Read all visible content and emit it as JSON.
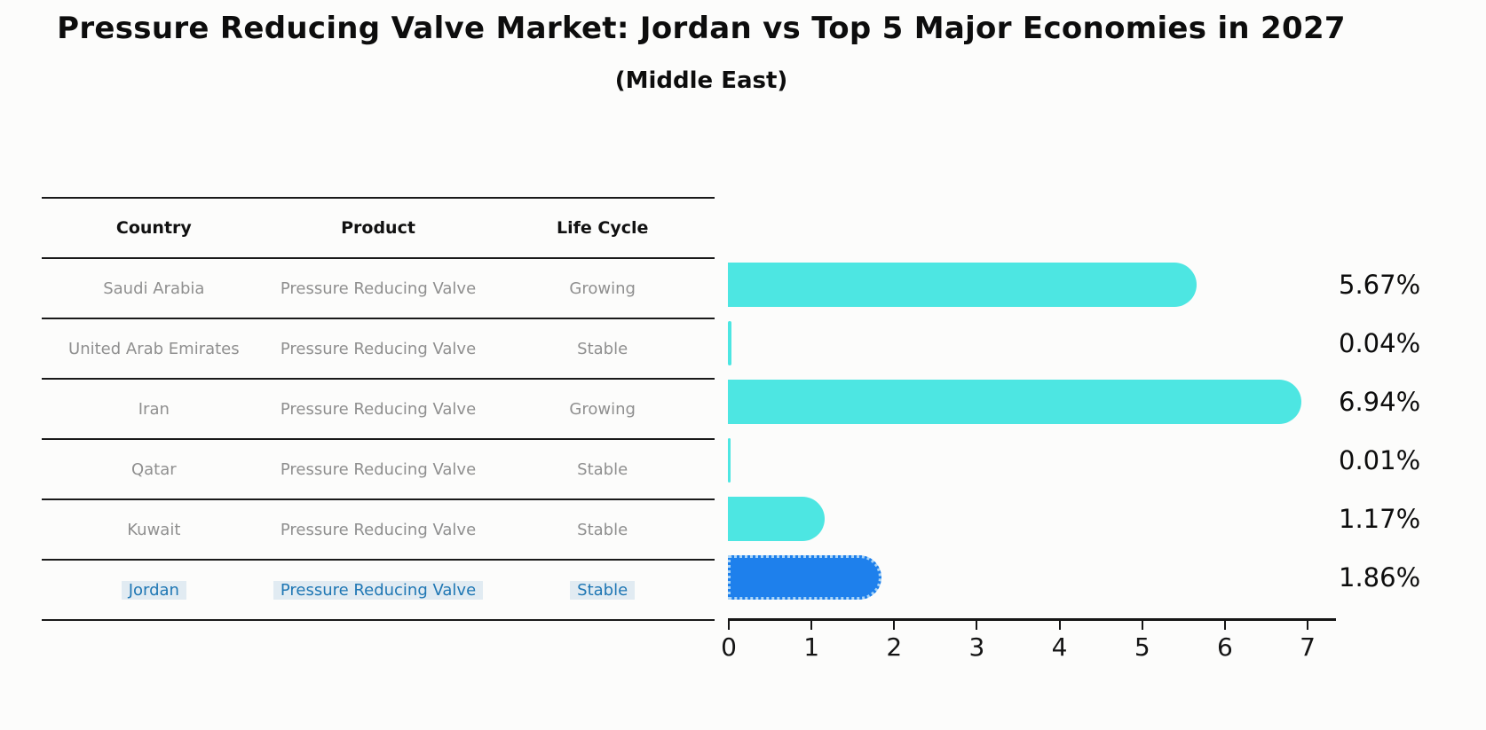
{
  "header": {
    "title": "Pressure Reducing Valve Market: Jordan vs Top 5 Major Economies in 2027",
    "subtitle": "(Middle East)"
  },
  "table": {
    "columns": [
      "Country",
      "Product",
      "Life Cycle"
    ],
    "rows": [
      {
        "country": "Saudi Arabia",
        "product": "Pressure Reducing Valve",
        "life_cycle": "Growing"
      },
      {
        "country": "United Arab Emirates",
        "product": "Pressure Reducing Valve",
        "life_cycle": "Stable"
      },
      {
        "country": "Iran",
        "product": "Pressure Reducing Valve",
        "life_cycle": "Growing"
      },
      {
        "country": "Qatar",
        "product": "Pressure Reducing Valve",
        "life_cycle": "Stable"
      },
      {
        "country": "Kuwait",
        "product": "Pressure Reducing Valve",
        "life_cycle": "Stable"
      },
      {
        "country": "Jordan",
        "product": "Pressure Reducing Valve",
        "life_cycle": "Stable"
      }
    ]
  },
  "chart_data": {
    "type": "bar",
    "orientation": "horizontal",
    "title": "Pressure Reducing Valve Market: Jordan vs Top 5 Major Economies in 2027 (Middle East)",
    "categories": [
      "Saudi Arabia",
      "United Arab Emirates",
      "Iran",
      "Qatar",
      "Kuwait",
      "Jordan"
    ],
    "values": [
      5.67,
      0.04,
      6.94,
      0.01,
      1.17,
      1.86
    ],
    "value_labels": [
      "5.67%",
      "0.04%",
      "6.94%",
      "0.01%",
      "1.17%",
      "1.86%"
    ],
    "xlim": [
      0,
      7.3
    ],
    "xticks": [
      0,
      1,
      2,
      3,
      4,
      5,
      6,
      7
    ],
    "grid": false,
    "legend": false,
    "bar_color": "#4de6e2",
    "highlight_color": "#1e80ec",
    "highlight_index": 5
  },
  "colors": {
    "background": "#fcfcfb",
    "table_line": "#1a1a1a",
    "table_text_muted": "#8f8f8f",
    "highlight_text": "#1f77b4",
    "axis": "#151515",
    "label_text": "#0d0d0d"
  }
}
